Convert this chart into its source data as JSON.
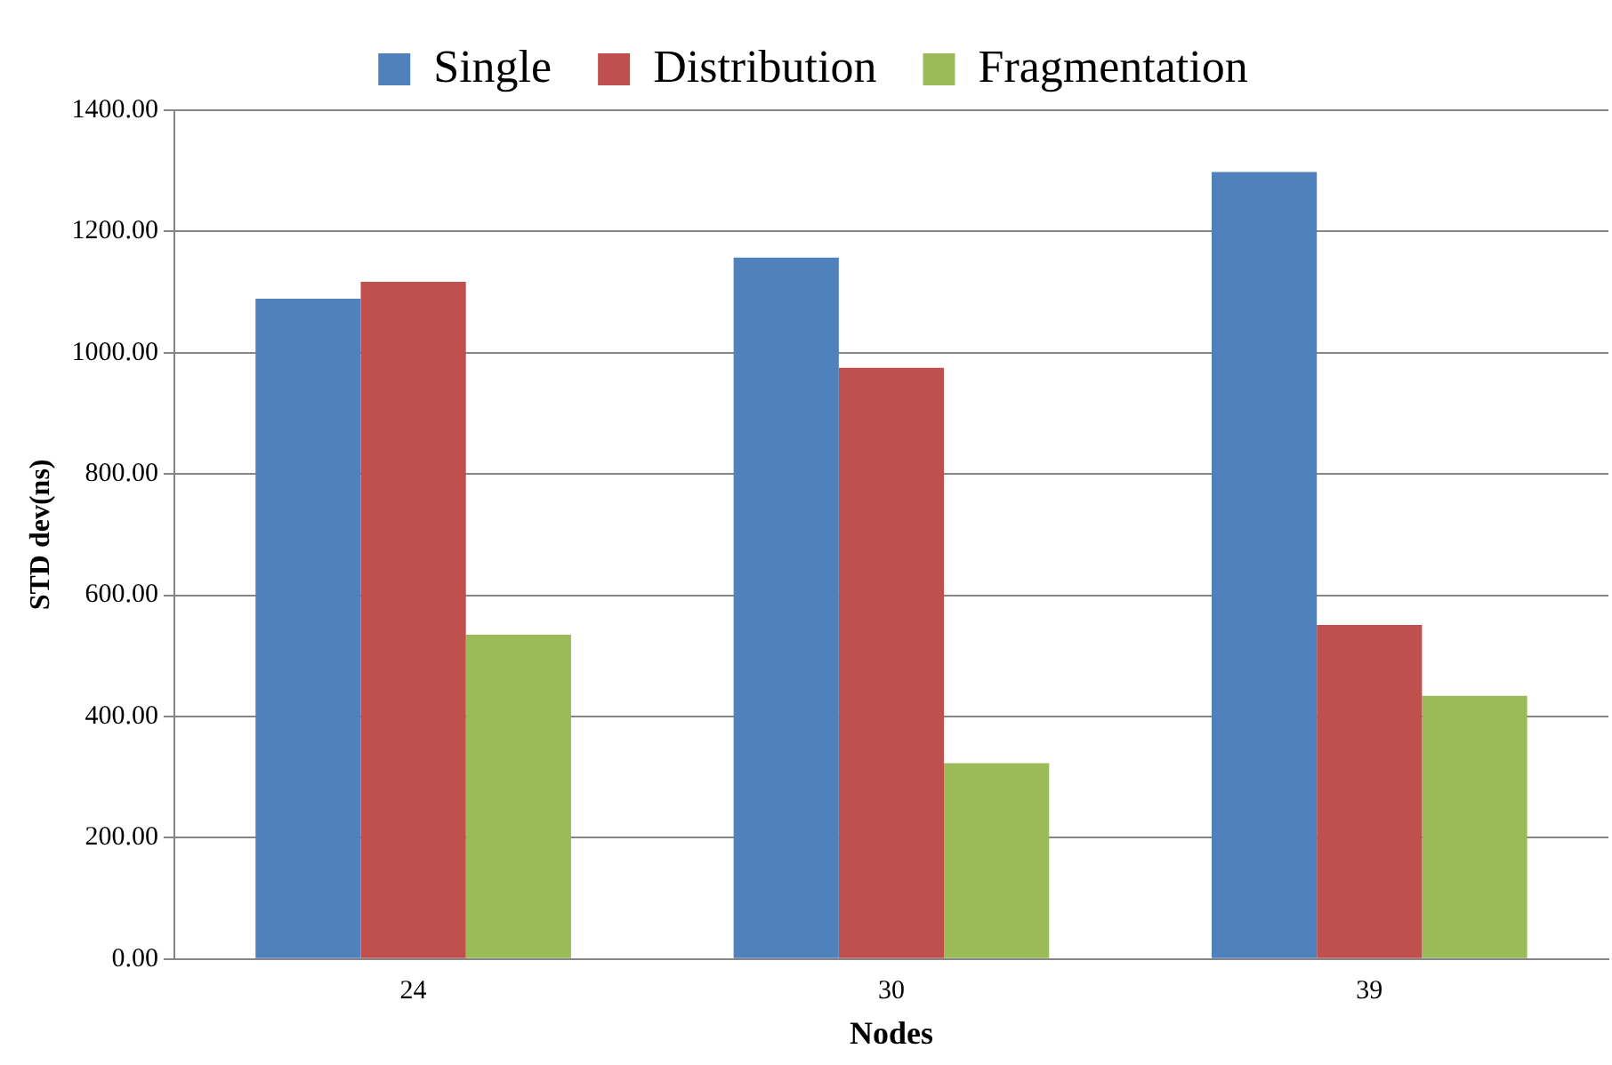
{
  "chart_data": {
    "type": "bar",
    "xlabel": "Nodes",
    "ylabel": "STD dev(ns)",
    "categories": [
      "24",
      "30",
      "39"
    ],
    "series": [
      {
        "name": "Single",
        "color": "#4f81bd",
        "values": [
          1089,
          1157,
          1298
        ]
      },
      {
        "name": "Distribution",
        "color": "#c0504d",
        "values": [
          1117,
          975,
          551
        ]
      },
      {
        "name": "Fragmentation",
        "color": "#9bbb59",
        "values": [
          535,
          323,
          434
        ]
      }
    ],
    "ylim": [
      0,
      1400
    ],
    "yticks": [
      {
        "value": 0,
        "label": "0.00"
      },
      {
        "value": 200,
        "label": "200.00"
      },
      {
        "value": 400,
        "label": "400.00"
      },
      {
        "value": 600,
        "label": "600.00"
      },
      {
        "value": 800,
        "label": "800.00"
      },
      {
        "value": 1000,
        "label": "1000.00"
      },
      {
        "value": 1200,
        "label": "1200.00"
      },
      {
        "value": 1400,
        "label": "1400.00"
      }
    ],
    "grid": "y",
    "legend": "top"
  }
}
